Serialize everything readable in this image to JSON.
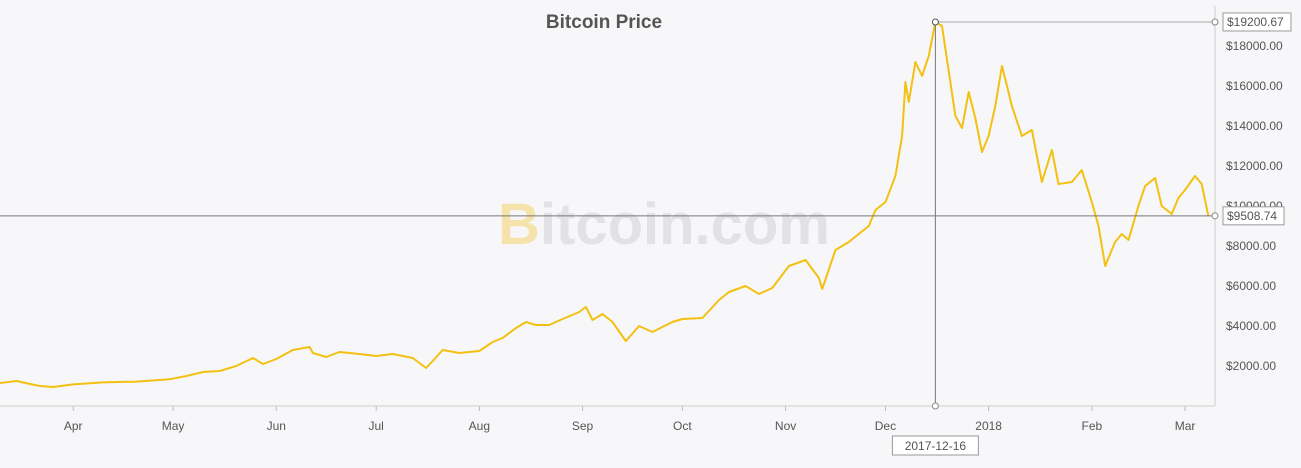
{
  "chart_data": {
    "type": "line",
    "title": "Bitcoin Price",
    "watermark": {
      "b": "B",
      "rest": "itcoin.com"
    },
    "xlabel": "",
    "ylabel": "",
    "x_range": [
      "2017-03-10",
      "2018-03-10"
    ],
    "ylim": [
      0,
      20000
    ],
    "y_ticks": [
      "$2000.00",
      "$4000.00",
      "$6000.00",
      "$8000.00",
      "$10000.00",
      "$12000.00",
      "$14000.00",
      "$16000.00",
      "$18000.00"
    ],
    "x_ticks": [
      {
        "date": "2017-04-01",
        "label": "Apr"
      },
      {
        "date": "2017-05-01",
        "label": "May"
      },
      {
        "date": "2017-06-01",
        "label": "Jun"
      },
      {
        "date": "2017-07-01",
        "label": "Jul"
      },
      {
        "date": "2017-08-01",
        "label": "Aug"
      },
      {
        "date": "2017-09-01",
        "label": "Sep"
      },
      {
        "date": "2017-10-01",
        "label": "Oct"
      },
      {
        "date": "2017-11-01",
        "label": "Nov"
      },
      {
        "date": "2017-12-01",
        "label": "Dec"
      },
      {
        "date": "2018-01-01",
        "label": "2018"
      },
      {
        "date": "2018-02-01",
        "label": "Feb"
      },
      {
        "date": "2018-03-01",
        "label": "Mar"
      }
    ],
    "crosshair": {
      "date": "2017-12-16",
      "date_label": "2017-12-16",
      "high_value": 19200.67,
      "high_label": "$19200.67",
      "current_value": 9508.74,
      "current_label": "$9508.74"
    },
    "grid": false,
    "legend": "none",
    "colors": {
      "line": "#f4c012",
      "background": "#f7f7f9",
      "crosshair": "#888888",
      "text": "#555555"
    },
    "series": [
      {
        "points": [
          [
            "2017-03-10",
            1150
          ],
          [
            "2017-03-15",
            1250
          ],
          [
            "2017-03-19",
            1100
          ],
          [
            "2017-03-22",
            1000
          ],
          [
            "2017-03-26",
            950
          ],
          [
            "2017-04-01",
            1080
          ],
          [
            "2017-04-10",
            1180
          ],
          [
            "2017-04-20",
            1220
          ],
          [
            "2017-04-30",
            1340
          ],
          [
            "2017-05-05",
            1500
          ],
          [
            "2017-05-10",
            1700
          ],
          [
            "2017-05-15",
            1750
          ],
          [
            "2017-05-20",
            2000
          ],
          [
            "2017-05-25",
            2400
          ],
          [
            "2017-05-28",
            2100
          ],
          [
            "2017-06-01",
            2350
          ],
          [
            "2017-06-06",
            2800
          ],
          [
            "2017-06-11",
            2950
          ],
          [
            "2017-06-12",
            2650
          ],
          [
            "2017-06-16",
            2450
          ],
          [
            "2017-06-20",
            2700
          ],
          [
            "2017-06-26",
            2600
          ],
          [
            "2017-07-01",
            2500
          ],
          [
            "2017-07-06",
            2600
          ],
          [
            "2017-07-12",
            2400
          ],
          [
            "2017-07-16",
            1900
          ],
          [
            "2017-07-18",
            2250
          ],
          [
            "2017-07-21",
            2800
          ],
          [
            "2017-07-26",
            2650
          ],
          [
            "2017-08-01",
            2750
          ],
          [
            "2017-08-05",
            3200
          ],
          [
            "2017-08-08",
            3400
          ],
          [
            "2017-08-12",
            3900
          ],
          [
            "2017-08-15",
            4200
          ],
          [
            "2017-08-18",
            4050
          ],
          [
            "2017-08-22",
            4050
          ],
          [
            "2017-08-26",
            4350
          ],
          [
            "2017-08-31",
            4700
          ],
          [
            "2017-09-02",
            4950
          ],
          [
            "2017-09-04",
            4300
          ],
          [
            "2017-09-07",
            4600
          ],
          [
            "2017-09-10",
            4200
          ],
          [
            "2017-09-14",
            3250
          ],
          [
            "2017-09-18",
            4000
          ],
          [
            "2017-09-22",
            3700
          ],
          [
            "2017-09-28",
            4200
          ],
          [
            "2017-10-01",
            4350
          ],
          [
            "2017-10-07",
            4400
          ],
          [
            "2017-10-12",
            5300
          ],
          [
            "2017-10-15",
            5700
          ],
          [
            "2017-10-20",
            6000
          ],
          [
            "2017-10-24",
            5600
          ],
          [
            "2017-10-28",
            5900
          ],
          [
            "2017-11-02",
            7000
          ],
          [
            "2017-11-07",
            7300
          ],
          [
            "2017-11-11",
            6400
          ],
          [
            "2017-11-12",
            5850
          ],
          [
            "2017-11-16",
            7800
          ],
          [
            "2017-11-20",
            8200
          ],
          [
            "2017-11-26",
            9000
          ],
          [
            "2017-11-28",
            9800
          ],
          [
            "2017-12-01",
            10200
          ],
          [
            "2017-12-04",
            11500
          ],
          [
            "2017-12-06",
            13500
          ],
          [
            "2017-12-07",
            16200
          ],
          [
            "2017-12-08",
            15200
          ],
          [
            "2017-12-10",
            17200
          ],
          [
            "2017-12-12",
            16500
          ],
          [
            "2017-12-14",
            17500
          ],
          [
            "2017-12-16",
            19200.67
          ],
          [
            "2017-12-18",
            19000
          ],
          [
            "2017-12-22",
            14500
          ],
          [
            "2017-12-24",
            13900
          ],
          [
            "2017-12-26",
            15700
          ],
          [
            "2017-12-28",
            14400
          ],
          [
            "2017-12-30",
            12700
          ],
          [
            "2018-01-01",
            13500
          ],
          [
            "2018-01-03",
            15000
          ],
          [
            "2018-01-05",
            17000
          ],
          [
            "2018-01-08",
            15000
          ],
          [
            "2018-01-11",
            13500
          ],
          [
            "2018-01-14",
            13800
          ],
          [
            "2018-01-17",
            11200
          ],
          [
            "2018-01-20",
            12800
          ],
          [
            "2018-01-22",
            11100
          ],
          [
            "2018-01-26",
            11200
          ],
          [
            "2018-01-29",
            11800
          ],
          [
            "2018-02-01",
            10200
          ],
          [
            "2018-02-03",
            9000
          ],
          [
            "2018-02-05",
            7000
          ],
          [
            "2018-02-08",
            8200
          ],
          [
            "2018-02-10",
            8600
          ],
          [
            "2018-02-12",
            8300
          ],
          [
            "2018-02-15",
            10000
          ],
          [
            "2018-02-17",
            11000
          ],
          [
            "2018-02-20",
            11400
          ],
          [
            "2018-02-22",
            10000
          ],
          [
            "2018-02-25",
            9600
          ],
          [
            "2018-02-27",
            10400
          ],
          [
            "2018-03-01",
            10800
          ],
          [
            "2018-03-04",
            11500
          ],
          [
            "2018-03-06",
            11100
          ],
          [
            "2018-03-08",
            9508.74
          ]
        ]
      }
    ]
  }
}
